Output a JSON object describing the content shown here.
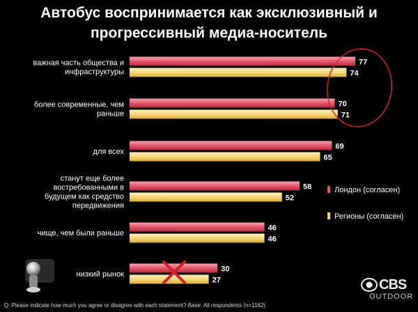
{
  "title_line1": "Автобус воспринимается как эксклюзивный и",
  "title_line2": "прогрессивный медиа-носитель",
  "footnote": "Q: Please indicate how much you agree or disagree with each statement?  Base: All respondents (n=1162)",
  "logo": {
    "name": "CBS",
    "sub": "OUTDOOR",
    "icon": "cbs-eye-icon"
  },
  "colors": {
    "background": "#000000",
    "london": "#e4596c",
    "regions": "#f7d67a",
    "highlight": "#d4202c"
  },
  "chart_data": {
    "type": "bar",
    "orientation": "horizontal",
    "title": "Автобус воспринимается как эксклюзивный и прогрессивный медиа-носитель",
    "categories": [
      [
        "важная часть общества и",
        "инфраструктуры"
      ],
      [
        "более современные, чем",
        "раньше"
      ],
      [
        "для всех"
      ],
      [
        "станут еще более",
        "востребованными в",
        "будущем как средство",
        "передвижения"
      ],
      [
        "чище, чем были раньше"
      ],
      [
        "низкий рынок"
      ]
    ],
    "series": [
      {
        "name": "Лондон (согласен)",
        "values": [
          77,
          70,
          69,
          58,
          46,
          30
        ]
      },
      {
        "name": "Регионы (согласен)",
        "values": [
          74,
          71,
          65,
          52,
          46,
          27
        ]
      }
    ],
    "xlim": [
      0,
      77
    ],
    "legend_position": "right",
    "grid": false,
    "annotations": [
      "circle-around-top-two-groups",
      "red-cross-on-last-group"
    ]
  }
}
